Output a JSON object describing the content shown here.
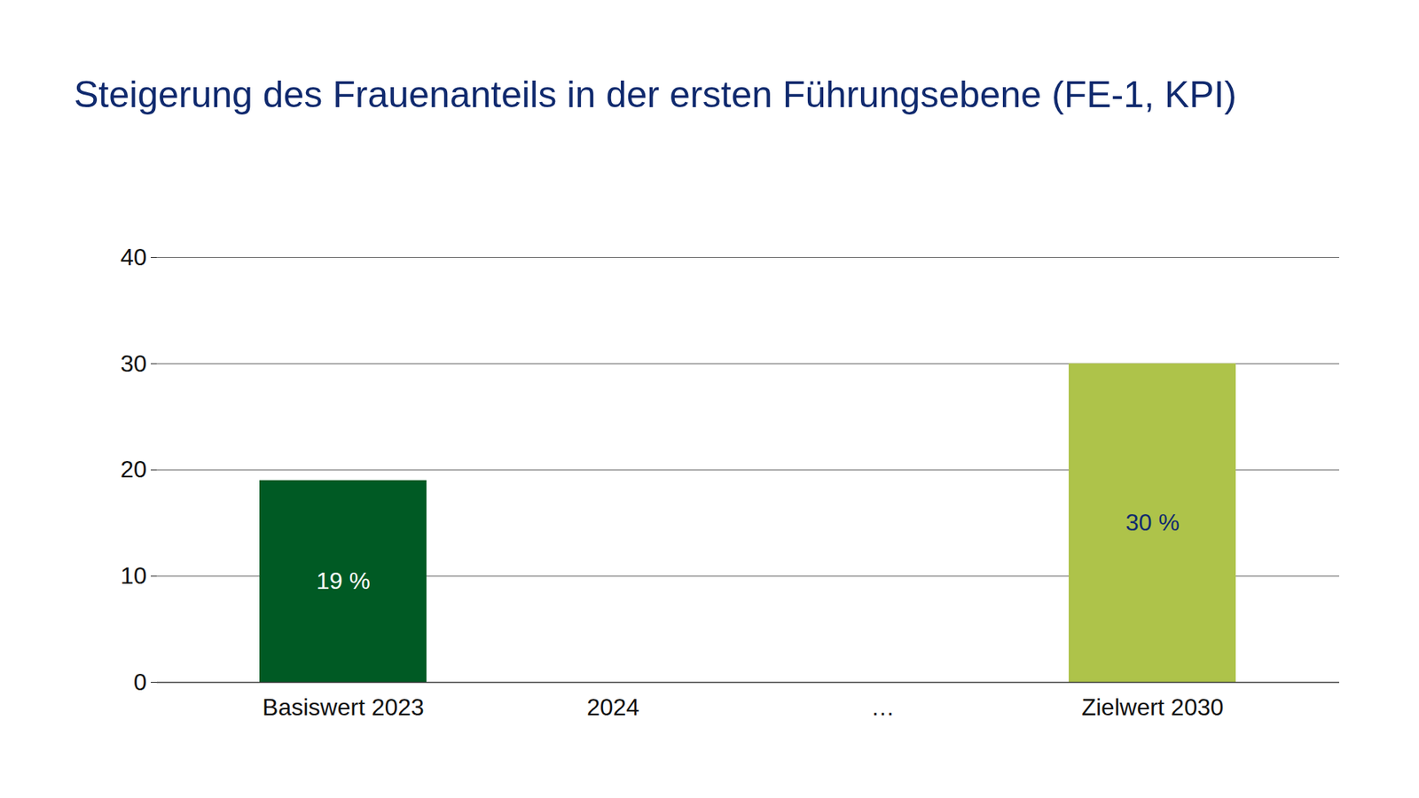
{
  "chart_data": {
    "type": "bar",
    "title": "Steigerung des Frauenanteils in der ersten Führungsebene (FE-1, KPI)",
    "categories": [
      "Basiswert 2023",
      "2024",
      "…",
      "Zielwert 2030"
    ],
    "values": [
      19,
      null,
      null,
      30
    ],
    "value_labels": [
      "19 %",
      null,
      null,
      "30 %"
    ],
    "colors": [
      "#005a24",
      null,
      null,
      "#aec34a"
    ],
    "data_labels": true,
    "ylim": [
      0,
      40
    ],
    "yticks": [
      0,
      10,
      20,
      30,
      40
    ],
    "grid": true
  }
}
